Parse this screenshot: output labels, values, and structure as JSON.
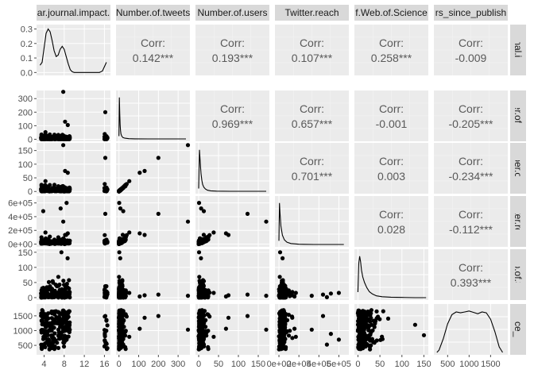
{
  "chart_data": {
    "type": "scatter",
    "title": "",
    "variables": [
      {
        "key": "jif",
        "strip_label": "ar.journal.impact.",
        "row_strip_label": "journal.impa",
        "range": [
          2.5,
          17.2
        ],
        "ticks": [
          4,
          8,
          12,
          16
        ],
        "tick_labels": [
          "4",
          "8",
          "12",
          "16"
        ]
      },
      {
        "key": "tweets",
        "strip_label": "Number.of.tweets",
        "row_strip_label": "mber.of.twe",
        "range": [
          -15,
          360
        ],
        "ticks": [
          0,
          100,
          200,
          300
        ],
        "tick_labels": [
          "0",
          "100",
          "200",
          "300"
        ]
      },
      {
        "key": "users",
        "strip_label": "Number.of.users",
        "row_strip_label": "umber.of.us",
        "range": [
          -8,
          178
        ],
        "ticks": [
          0,
          50,
          100,
          150
        ],
        "tick_labels": [
          "0",
          "50",
          "100",
          "150"
        ]
      },
      {
        "key": "reach",
        "strip_label": "Twitter.reach",
        "row_strip_label": "witter.reac",
        "range": [
          -40000,
          700000
        ],
        "ticks": [
          0,
          200000,
          400000,
          600000
        ],
        "tick_labels": [
          "0e+00",
          "2e+05",
          "4e+05",
          "6e+05"
        ]
      },
      {
        "key": "wos",
        "strip_label": "f.Web.of.Science",
        "row_strip_label": "Web.of.Scie",
        "range": [
          -8,
          160
        ],
        "ticks": [
          0,
          50,
          100,
          150
        ],
        "tick_labels": [
          "0",
          "50",
          "100",
          "150"
        ]
      },
      {
        "key": "days",
        "strip_label": "rs_since_publish",
        "row_strip_label": "_since_publ",
        "range": [
          180,
          1900
        ],
        "ticks": [
          500,
          1000,
          1500
        ],
        "tick_labels": [
          "500",
          "1000",
          "1500"
        ]
      }
    ],
    "correlations": [
      {
        "row": 0,
        "col": 1,
        "label": "Corr:",
        "value": "0.142***"
      },
      {
        "row": 0,
        "col": 2,
        "label": "Corr:",
        "value": "0.193***"
      },
      {
        "row": 0,
        "col": 3,
        "label": "Corr:",
        "value": "0.107***"
      },
      {
        "row": 0,
        "col": 4,
        "label": "Corr:",
        "value": "0.258***"
      },
      {
        "row": 0,
        "col": 5,
        "label": "Corr:",
        "value": "-0.009"
      },
      {
        "row": 1,
        "col": 2,
        "label": "Corr:",
        "value": "0.969***"
      },
      {
        "row": 1,
        "col": 3,
        "label": "Corr:",
        "value": "0.657***"
      },
      {
        "row": 1,
        "col": 4,
        "label": "Corr:",
        "value": "-0.001"
      },
      {
        "row": 1,
        "col": 5,
        "label": "Corr:",
        "value": "-0.205***"
      },
      {
        "row": 2,
        "col": 3,
        "label": "Corr:",
        "value": "0.701***"
      },
      {
        "row": 2,
        "col": 4,
        "label": "Corr:",
        "value": "0.003"
      },
      {
        "row": 2,
        "col": 5,
        "label": "Corr:",
        "value": "-0.234***"
      },
      {
        "row": 3,
        "col": 4,
        "label": "Corr:",
        "value": "0.028"
      },
      {
        "row": 3,
        "col": 5,
        "label": "Corr:",
        "value": "-0.112***"
      },
      {
        "row": 4,
        "col": 5,
        "label": "Corr:",
        "value": "0.393***"
      }
    ],
    "density_axis": {
      "range": [
        -0.02,
        0.33
      ],
      "ticks": [
        0,
        0.1,
        0.2,
        0.3
      ],
      "tick_labels": [
        "0.0",
        "0.1",
        "0.2",
        "0.3"
      ]
    },
    "densities": [
      {
        "var": 0,
        "x": [
          3.2,
          3.6,
          4.0,
          4.4,
          4.8,
          5.2,
          5.6,
          6.0,
          6.4,
          6.8,
          7.2,
          7.6,
          8.0,
          8.4,
          8.8,
          9.2,
          9.6,
          10.0,
          10.5,
          11,
          12,
          13,
          14,
          15,
          15.6,
          16.0,
          16.4
        ],
        "y": [
          0.05,
          0.07,
          0.17,
          0.27,
          0.3,
          0.28,
          0.22,
          0.15,
          0.11,
          0.12,
          0.16,
          0.18,
          0.16,
          0.11,
          0.06,
          0.02,
          0.005,
          0.0,
          0.0,
          0.0,
          0.0,
          0.0,
          0.0,
          0.0,
          0.01,
          0.04,
          0.07
        ]
      },
      {
        "var": 1,
        "x": [
          0,
          2,
          4,
          6,
          8,
          10,
          14,
          20,
          30,
          50,
          80,
          150,
          250,
          340
        ],
        "y": [
          0.06,
          0.9,
          0.55,
          0.3,
          0.18,
          0.11,
          0.06,
          0.03,
          0.015,
          0.005,
          0.002,
          0.0,
          0.0,
          0.0
        ]
      },
      {
        "var": 2,
        "x": [
          0,
          2,
          4,
          6,
          8,
          10,
          13,
          17,
          22,
          30,
          45,
          80,
          130,
          170
        ],
        "y": [
          0.06,
          0.9,
          0.62,
          0.38,
          0.24,
          0.15,
          0.09,
          0.05,
          0.025,
          0.01,
          0.004,
          0.0,
          0.0,
          0.0
        ]
      },
      {
        "var": 3,
        "x": [
          0,
          5000,
          10000,
          20000,
          35000,
          55000,
          80000,
          120000,
          200000,
          350000,
          500000,
          650000
        ],
        "y": [
          0.08,
          0.9,
          0.7,
          0.4,
          0.2,
          0.1,
          0.05,
          0.02,
          0.006,
          0.0,
          0.0,
          0.0
        ]
      },
      {
        "var": 4,
        "x": [
          0,
          2,
          4,
          6,
          8,
          11,
          15,
          20,
          26,
          33,
          42,
          55,
          75,
          100,
          130,
          155
        ],
        "y": [
          0.12,
          0.75,
          0.9,
          0.78,
          0.6,
          0.45,
          0.33,
          0.22,
          0.13,
          0.08,
          0.04,
          0.02,
          0.01,
          0.005,
          0.0,
          0.0
        ]
      },
      {
        "var": 5,
        "x": [
          250,
          300,
          400,
          500,
          600,
          700,
          800,
          900,
          1000,
          1100,
          1200,
          1300,
          1400,
          1500,
          1600,
          1700,
          1780
        ],
        "y": [
          0.0,
          0.05,
          0.3,
          0.62,
          0.82,
          0.88,
          0.86,
          0.88,
          0.9,
          0.87,
          0.84,
          0.88,
          0.86,
          0.72,
          0.45,
          0.12,
          0.0
        ]
      }
    ],
    "scatter_seed": 12345,
    "scatter_points_per_panel": 220,
    "grid": true,
    "legend": "none"
  }
}
